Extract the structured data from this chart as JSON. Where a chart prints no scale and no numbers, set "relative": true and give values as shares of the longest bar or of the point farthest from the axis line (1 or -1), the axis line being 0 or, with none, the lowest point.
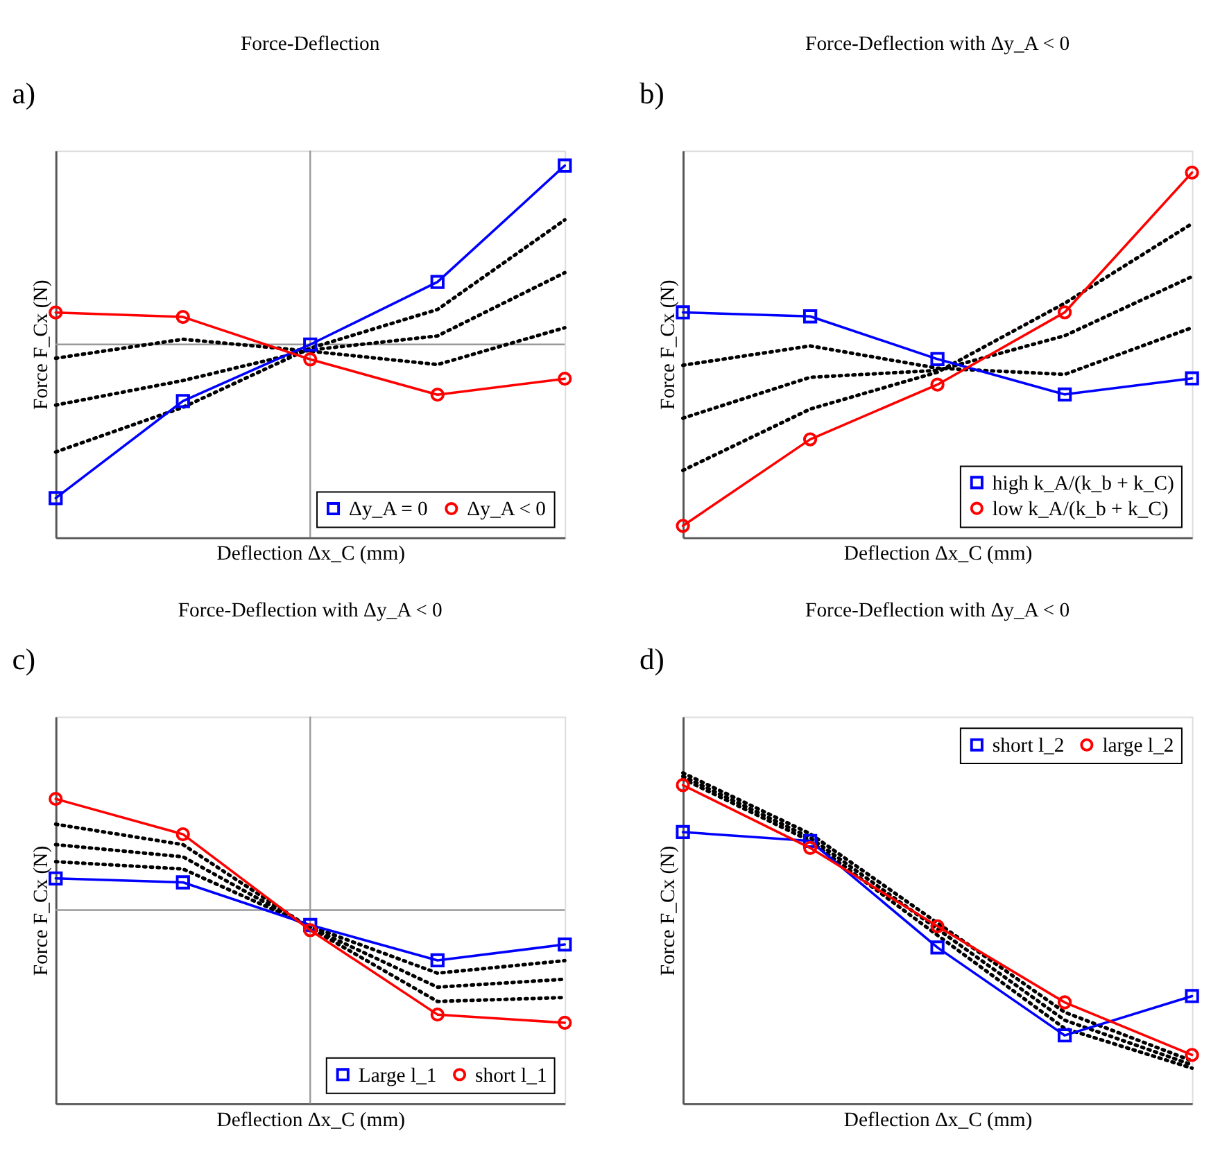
{
  "chart_data": [
    {
      "type": "line",
      "relative": true,
      "title": "Force-Deflection",
      "xlabel": "Deflection Δx_C (mm)",
      "ylabel": "Force F_Cx (N)",
      "annotations": [
        "a)"
      ],
      "categories": [
        null,
        null,
        null,
        null,
        null
      ],
      "grid": false,
      "legend": "bottom right",
      "series": [
        {
          "color": "#000000",
          "line_style": "dotted",
          "marker": "none",
          "values": [
            0.482,
            0.533,
            0.501,
            0.465,
            0.564
          ]
        },
        {
          "color": "#000000",
          "line_style": "dotted",
          "marker": "none",
          "values": [
            0.356,
            0.422,
            0.504,
            0.542,
            0.712
          ]
        },
        {
          "color": "#000000",
          "line_style": "dotted",
          "marker": "none",
          "values": [
            0.23,
            0.35,
            0.509,
            0.613,
            0.854
          ]
        },
        {
          "name": "Δy_A = 0",
          "color": "#0000ff",
          "line_style": "solid",
          "marker": "square",
          "values": [
            0.106,
            0.367,
            0.519,
            0.687,
            1.0
          ]
        },
        {
          "name": "Δy_A < 0",
          "color": "#ff0000",
          "line_style": "solid",
          "marker": "circle",
          "values": [
            0.605,
            0.593,
            0.479,
            0.384,
            0.427
          ]
        }
      ],
      "ref_lines": [
        {
          "axis": "y",
          "value": 0.519,
          "color": "#999999"
        },
        {
          "axis": "x",
          "value": null,
          "color": "#999999"
        }
      ]
    },
    {
      "type": "line",
      "relative": true,
      "title": "Force-Deflection with Δy_A < 0",
      "xlabel": "Deflection Δx_C (mm)",
      "ylabel": "Force F_Cx (N)",
      "annotations": [
        "b)"
      ],
      "categories": [
        null,
        null,
        null,
        null,
        null
      ],
      "grid": false,
      "legend": "bottom right",
      "series": [
        {
          "color": "#000000",
          "line_style": "dotted",
          "marker": "none",
          "values": [
            0.472,
            0.525,
            0.464,
            0.447,
            0.575
          ]
        },
        {
          "color": "#000000",
          "line_style": "dotted",
          "marker": "none",
          "values": [
            0.327,
            0.439,
            0.458,
            0.553,
            0.715
          ]
        },
        {
          "color": "#000000",
          "line_style": "dotted",
          "marker": "none",
          "values": [
            0.184,
            0.352,
            0.453,
            0.642,
            0.86
          ]
        },
        {
          "name": "high k_A/(k_b + k_C)",
          "color": "#0000ff",
          "line_style": "solid",
          "marker": "square",
          "values": [
            0.617,
            0.606,
            0.489,
            0.392,
            0.436
          ]
        },
        {
          "name": "low k_A/(k_b + k_C)",
          "color": "#ff0000",
          "line_style": "solid",
          "marker": "circle",
          "values": [
            0.032,
            0.269,
            0.419,
            0.617,
            1.0
          ]
        }
      ]
    },
    {
      "type": "line",
      "relative": true,
      "title": "Force-Deflection with Δy_A < 0",
      "xlabel": "Deflection Δx_C (mm)",
      "ylabel": "Force F_Cx (N)",
      "annotations": [
        "c)"
      ],
      "categories": [
        null,
        null,
        null,
        null,
        null
      ],
      "grid": false,
      "legend": "bottom right",
      "series": [
        {
          "color": "#000000",
          "line_style": "dotted",
          "marker": "none",
          "values": [
            0.917,
            0.85,
            0.576,
            0.335,
            0.348
          ]
        },
        {
          "color": "#000000",
          "line_style": "dotted",
          "marker": "none",
          "values": [
            0.85,
            0.81,
            0.578,
            0.382,
            0.408
          ]
        },
        {
          "color": "#000000",
          "line_style": "dotted",
          "marker": "none",
          "values": [
            0.794,
            0.77,
            0.582,
            0.428,
            0.469
          ]
        },
        {
          "name": "Large l_1",
          "color": "#0000ff",
          "line_style": "solid",
          "marker": "square",
          "values": [
            0.739,
            0.726,
            0.586,
            0.47,
            0.522
          ]
        },
        {
          "name": "short l_1",
          "color": "#ff0000",
          "line_style": "solid",
          "marker": "circle",
          "values": [
            1.0,
            0.884,
            0.569,
            0.292,
            0.265
          ]
        }
      ],
      "ref_lines": [
        {
          "axis": "y",
          "value": 0.635,
          "color": "#999999"
        },
        {
          "axis": "x",
          "value": null,
          "color": "#999999"
        }
      ]
    },
    {
      "type": "line",
      "relative": true,
      "title": "Force-Deflection with Δy_A < 0",
      "xlabel": "Deflection Δx_C (mm)",
      "ylabel": "Force F_Cx (N)",
      "annotations": [
        "d)"
      ],
      "categories": [
        null,
        null,
        null,
        null,
        null
      ],
      "grid": false,
      "legend": "top right",
      "series": [
        {
          "color": "#000000",
          "line_style": "dotted",
          "marker": "none",
          "values": [
            1.0,
            0.816,
            0.546,
            0.276,
            0.129
          ]
        },
        {
          "color": "#000000",
          "line_style": "dotted",
          "marker": "none",
          "values": [
            0.99,
            0.804,
            0.528,
            0.252,
            0.117
          ]
        },
        {
          "color": "#000000",
          "line_style": "dotted",
          "marker": "none",
          "values": [
            0.982,
            0.794,
            0.509,
            0.227,
            0.107
          ]
        },
        {
          "name": "short l_2",
          "color": "#0000ff",
          "line_style": "solid",
          "marker": "square",
          "values": [
            0.821,
            0.794,
            0.472,
            0.206,
            0.325
          ]
        },
        {
          "name": "large l_2",
          "color": "#ff0000",
          "line_style": "solid",
          "marker": "circle",
          "values": [
            0.963,
            0.773,
            0.536,
            0.306,
            0.147
          ]
        }
      ]
    }
  ]
}
